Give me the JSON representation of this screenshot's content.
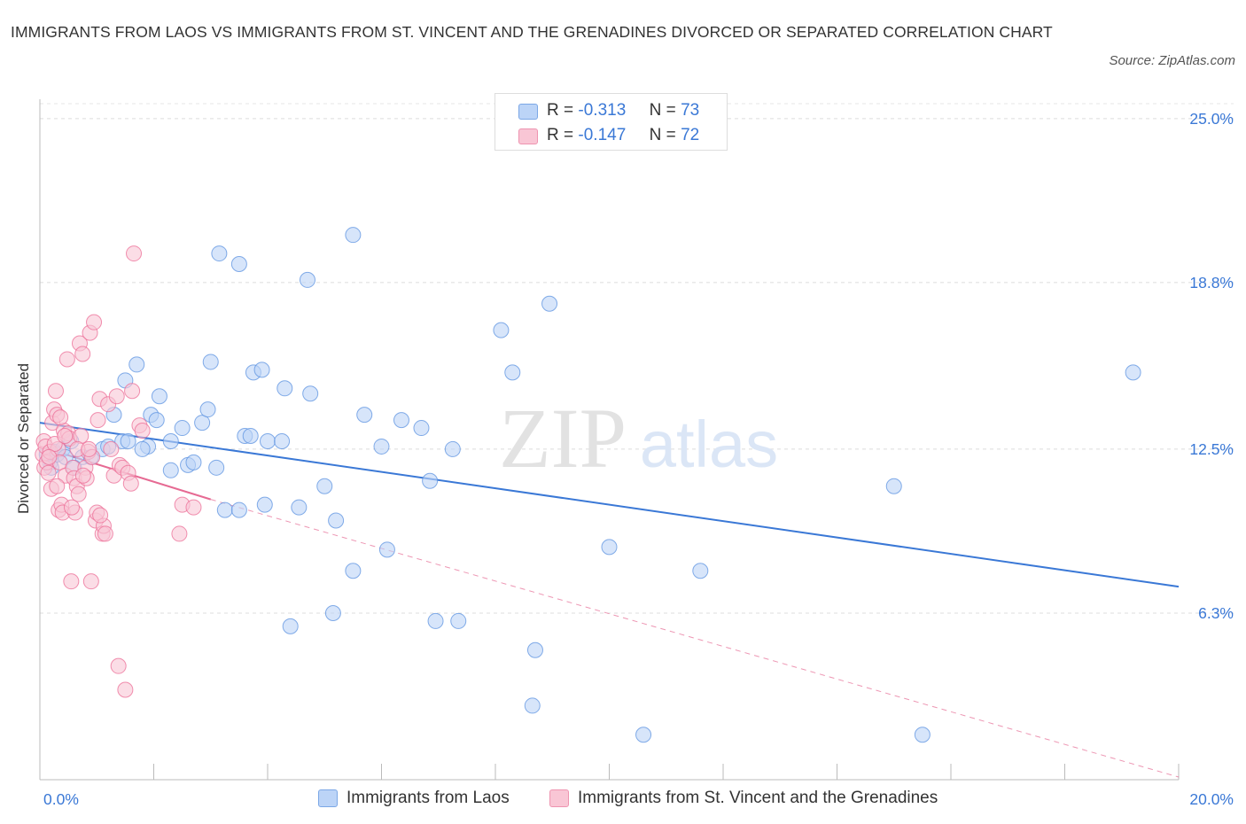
{
  "title": "IMMIGRANTS FROM LAOS VS IMMIGRANTS FROM ST. VINCENT AND THE GRENADINES DIVORCED OR SEPARATED CORRELATION CHART",
  "source": "Source: ZipAtlas.com",
  "watermark": {
    "zip": "ZIP",
    "atlas": "atlas"
  },
  "legend": [
    {
      "r_label": "R =",
      "r_value": "-0.313",
      "n_label": "N =",
      "n_value": "73",
      "fill": "#bcd4f7",
      "stroke": "#7ba7e6"
    },
    {
      "r_label": "R =",
      "r_value": "-0.147",
      "n_label": "N =",
      "n_value": "72",
      "fill": "#f9c6d5",
      "stroke": "#ee94b0"
    }
  ],
  "chart_data": {
    "type": "scatter",
    "title": "IMMIGRANTS FROM LAOS VS IMMIGRANTS FROM ST. VINCENT AND THE GRENADINES DIVORCED OR SEPARATED CORRELATION CHART",
    "xlabel": "",
    "ylabel": "Divorced or Separated",
    "xlim": [
      0,
      20
    ],
    "ylim": [
      0,
      25.9
    ],
    "x_tick_labels": [
      "0.0%",
      "20.0%"
    ],
    "y_ticks": [
      {
        "value": 6.3,
        "label": "6.3%"
      },
      {
        "value": 12.5,
        "label": "12.5%"
      },
      {
        "value": 18.8,
        "label": "18.8%"
      },
      {
        "value": 25.0,
        "label": "25.0%"
      }
    ],
    "grid": true,
    "legend_position": "top-center",
    "series": [
      {
        "name": "Immigrants from Laos",
        "color": "#5b92e0",
        "fill": "#bcd4f7",
        "points": [
          [
            0.12,
            12.3
          ],
          [
            0.18,
            12.0
          ],
          [
            0.25,
            12.4
          ],
          [
            0.3,
            12.3
          ],
          [
            0.4,
            12.5
          ],
          [
            0.45,
            12.2
          ],
          [
            0.55,
            12.8
          ],
          [
            0.75,
            12.2
          ],
          [
            0.9,
            12.2
          ],
          [
            1.1,
            12.5
          ],
          [
            1.2,
            12.6
          ],
          [
            1.3,
            13.8
          ],
          [
            1.45,
            12.8
          ],
          [
            1.55,
            12.8
          ],
          [
            1.5,
            15.1
          ],
          [
            1.7,
            15.7
          ],
          [
            1.9,
            12.6
          ],
          [
            1.95,
            13.8
          ],
          [
            2.05,
            13.6
          ],
          [
            2.1,
            14.5
          ],
          [
            2.3,
            12.8
          ],
          [
            2.5,
            13.3
          ],
          [
            2.6,
            11.9
          ],
          [
            2.7,
            12.0
          ],
          [
            2.85,
            13.5
          ],
          [
            2.95,
            14.0
          ],
          [
            3.0,
            15.8
          ],
          [
            3.1,
            11.8
          ],
          [
            3.15,
            19.9
          ],
          [
            3.25,
            10.2
          ],
          [
            3.5,
            10.2
          ],
          [
            3.5,
            19.5
          ],
          [
            3.6,
            13.0
          ],
          [
            3.7,
            13.0
          ],
          [
            3.75,
            15.4
          ],
          [
            3.9,
            15.5
          ],
          [
            3.95,
            10.4
          ],
          [
            4.0,
            12.8
          ],
          [
            4.25,
            12.8
          ],
          [
            4.3,
            14.8
          ],
          [
            4.4,
            5.8
          ],
          [
            4.55,
            10.3
          ],
          [
            4.7,
            18.9
          ],
          [
            4.75,
            14.6
          ],
          [
            5.0,
            11.1
          ],
          [
            5.15,
            6.3
          ],
          [
            5.2,
            9.8
          ],
          [
            5.5,
            20.6
          ],
          [
            5.5,
            7.9
          ],
          [
            5.7,
            13.8
          ],
          [
            6.0,
            12.6
          ],
          [
            6.1,
            8.7
          ],
          [
            6.35,
            13.6
          ],
          [
            6.7,
            13.3
          ],
          [
            6.85,
            11.3
          ],
          [
            6.95,
            6.0
          ],
          [
            7.25,
            12.5
          ],
          [
            7.35,
            6.0
          ],
          [
            8.1,
            17.0
          ],
          [
            8.3,
            15.4
          ],
          [
            8.65,
            2.8
          ],
          [
            8.7,
            4.9
          ],
          [
            8.95,
            18.0
          ],
          [
            10.0,
            8.8
          ],
          [
            10.6,
            1.7
          ],
          [
            11.6,
            7.9
          ],
          [
            15.0,
            11.1
          ],
          [
            15.5,
            1.7
          ],
          [
            19.2,
            15.4
          ],
          [
            0.2,
            11.8
          ],
          [
            0.6,
            11.8
          ],
          [
            2.3,
            11.7
          ],
          [
            1.8,
            12.5
          ]
        ]
      },
      {
        "name": "Immigrants from St. Vincent and the Grenadines",
        "color": "#ec6c95",
        "fill": "#f9c6d5",
        "points": [
          [
            0.05,
            12.3
          ],
          [
            0.07,
            12.8
          ],
          [
            0.08,
            11.8
          ],
          [
            0.1,
            12.6
          ],
          [
            0.12,
            12.0
          ],
          [
            0.15,
            11.6
          ],
          [
            0.18,
            12.4
          ],
          [
            0.2,
            11.0
          ],
          [
            0.22,
            13.5
          ],
          [
            0.25,
            14.0
          ],
          [
            0.28,
            14.7
          ],
          [
            0.3,
            13.8
          ],
          [
            0.32,
            12.5
          ],
          [
            0.33,
            10.2
          ],
          [
            0.35,
            12.0
          ],
          [
            0.38,
            10.4
          ],
          [
            0.4,
            10.1
          ],
          [
            0.42,
            13.2
          ],
          [
            0.45,
            11.5
          ],
          [
            0.48,
            15.9
          ],
          [
            0.5,
            13.1
          ],
          [
            0.52,
            12.9
          ],
          [
            0.55,
            7.5
          ],
          [
            0.58,
            11.8
          ],
          [
            0.6,
            11.4
          ],
          [
            0.62,
            10.1
          ],
          [
            0.65,
            11.1
          ],
          [
            0.68,
            10.8
          ],
          [
            0.7,
            16.5
          ],
          [
            0.72,
            13.0
          ],
          [
            0.75,
            16.1
          ],
          [
            0.8,
            11.8
          ],
          [
            0.82,
            11.4
          ],
          [
            0.85,
            12.4
          ],
          [
            0.88,
            16.9
          ],
          [
            0.9,
            7.5
          ],
          [
            0.92,
            12.2
          ],
          [
            0.95,
            17.3
          ],
          [
            0.98,
            9.8
          ],
          [
            1.0,
            10.1
          ],
          [
            1.02,
            13.6
          ],
          [
            1.05,
            14.4
          ],
          [
            1.1,
            9.3
          ],
          [
            1.12,
            9.6
          ],
          [
            1.15,
            9.3
          ],
          [
            1.2,
            14.2
          ],
          [
            1.25,
            12.5
          ],
          [
            1.3,
            11.5
          ],
          [
            1.35,
            14.5
          ],
          [
            1.38,
            4.3
          ],
          [
            1.4,
            11.9
          ],
          [
            1.45,
            11.8
          ],
          [
            1.5,
            3.4
          ],
          [
            1.55,
            11.6
          ],
          [
            1.6,
            11.2
          ],
          [
            1.62,
            14.7
          ],
          [
            1.65,
            19.9
          ],
          [
            1.75,
            13.4
          ],
          [
            1.8,
            13.2
          ],
          [
            2.45,
            9.3
          ],
          [
            2.5,
            10.4
          ],
          [
            2.7,
            10.3
          ],
          [
            0.26,
            12.7
          ],
          [
            0.36,
            13.7
          ],
          [
            0.44,
            13.0
          ],
          [
            0.56,
            10.3
          ],
          [
            0.66,
            12.5
          ],
          [
            0.76,
            11.5
          ],
          [
            0.86,
            12.5
          ],
          [
            1.06,
            10.0
          ],
          [
            0.16,
            12.2
          ],
          [
            0.3,
            11.1
          ]
        ]
      }
    ],
    "trendlines": [
      {
        "series": "Immigrants from Laos",
        "from": [
          0,
          13.5
        ],
        "to": [
          20,
          7.3
        ],
        "style": "solid"
      },
      {
        "series": "Immigrants from St. Vincent and the Grenadines",
        "from": [
          0,
          12.6
        ],
        "to": [
          3.0,
          10.6
        ],
        "style": "solid"
      },
      {
        "series": "Immigrants from St. Vincent and the Grenadines",
        "from": [
          3.0,
          10.6
        ],
        "to": [
          20,
          0.1
        ],
        "style": "dashed"
      }
    ]
  }
}
